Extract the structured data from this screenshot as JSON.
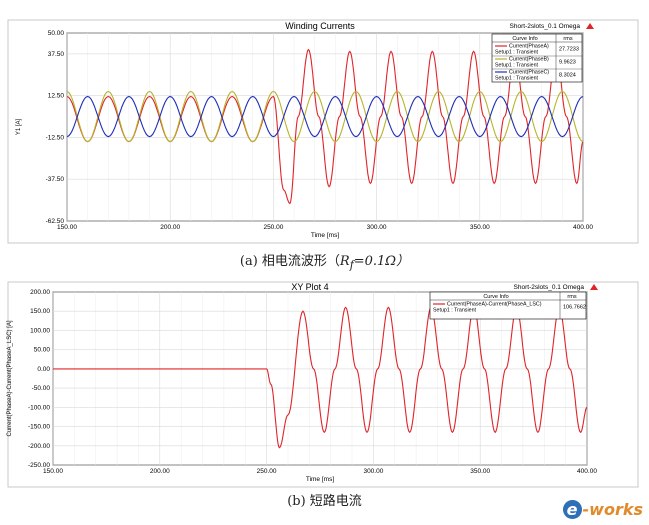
{
  "charts": [
    {
      "title": "Winding Currents",
      "project": "Short-2slots_0.1 Omega",
      "ylabel": "Y1 [A]",
      "xlabel": "Time [ms]",
      "xlim": [
        150,
        400
      ],
      "ylim": [
        -62.5,
        50
      ],
      "xticks": [
        "150.00",
        "200.00",
        "250.00",
        "300.00",
        "350.00",
        "400.00"
      ],
      "yticks": [
        "50.00",
        "37.50",
        "12.50",
        "-12.50",
        "-37.50",
        "-62.50"
      ],
      "legend": {
        "header": "Curve Info",
        "stat_header": "rms",
        "entries": [
          {
            "name": "Current(PhaseA)",
            "sub": "Setup1 : Transient",
            "value": "27.7233",
            "color": "#e0242a"
          },
          {
            "name": "Current(PhaseB)",
            "sub": "Setup1 : Transient",
            "value": "9.9623",
            "color": "#b6b42a"
          },
          {
            "name": "Current(PhaseC)",
            "sub": "Setup1 : Transient",
            "value": "8.3024",
            "color": "#1f2fb8"
          }
        ]
      }
    },
    {
      "title": "XY Plot 4",
      "project": "Short-2slots_0.1 Omega",
      "ylabel": "Current(PhaseA)-Current(PhaseA_LSC) [A]",
      "xlabel": "Time [ms]",
      "xlim": [
        150,
        400
      ],
      "ylim": [
        -250,
        200
      ],
      "xticks": [
        "150.00",
        "200.00",
        "250.00",
        "300.00",
        "350.00",
        "400.00"
      ],
      "yticks": [
        "200.00",
        "150.00",
        "100.00",
        "50.00",
        "0.00",
        "-50.00",
        "-100.00",
        "-150.00",
        "-200.00",
        "-250.00"
      ],
      "legend": {
        "header": "Curve Info",
        "stat_header": "rms",
        "entries": [
          {
            "name": "Current(PhaseA)-Current(PhaseA_LSC)",
            "sub": "Setup1 : Transient",
            "value": "106.7662",
            "color": "#e0242a"
          }
        ]
      }
    }
  ],
  "chart_data": [
    {
      "type": "line",
      "title": "Winding Currents",
      "xlabel": "Time [ms]",
      "ylabel": "Y1 [A]",
      "xlim": [
        150,
        400
      ],
      "ylim": [
        -62.5,
        50
      ],
      "period_ms": 20,
      "series": [
        {
          "name": "Current(PhaseA)",
          "color": "#e0242a",
          "x": [
            150,
            160,
            170,
            180,
            190,
            200,
            210,
            220,
            230,
            240,
            250,
            255,
            258,
            262,
            267,
            272,
            277,
            282,
            287,
            292,
            297,
            302,
            307,
            312,
            317,
            322,
            327,
            332,
            337,
            342,
            347,
            352,
            357,
            362,
            367,
            372,
            377,
            382,
            387,
            392,
            397,
            400
          ],
          "y": [
            12,
            -15,
            12,
            -15,
            12,
            -15,
            12,
            -15,
            12,
            -15,
            12,
            -44,
            -52,
            0,
            40,
            0,
            -42,
            0,
            39,
            0,
            -40,
            0,
            39,
            0,
            -40,
            0,
            39,
            0,
            -40,
            0,
            39,
            0,
            -40,
            0,
            39,
            0,
            -40,
            0,
            39,
            0,
            -40,
            -15
          ]
        },
        {
          "name": "Current(PhaseB)",
          "color": "#b6b42a",
          "x": [
            150,
            160,
            170,
            180,
            190,
            200,
            210,
            220,
            230,
            240,
            250,
            260,
            270,
            280,
            290,
            300,
            310,
            320,
            330,
            340,
            350,
            360,
            370,
            380,
            390,
            400
          ],
          "y": [
            15,
            -15,
            15,
            -15,
            15,
            -15,
            15,
            -15,
            15,
            -15,
            15,
            -15,
            15,
            -15,
            15,
            -15,
            15,
            -15,
            15,
            -15,
            15,
            -15,
            15,
            -15,
            15,
            -15
          ]
        },
        {
          "name": "Current(PhaseC)",
          "color": "#1f2fb8",
          "x": [
            150,
            160,
            170,
            180,
            190,
            200,
            210,
            220,
            230,
            240,
            250,
            260,
            270,
            280,
            290,
            300,
            310,
            320,
            330,
            340,
            350,
            360,
            370,
            380,
            390,
            400
          ],
          "y": [
            -12,
            12,
            -12,
            12,
            -12,
            12,
            -12,
            12,
            -12,
            12,
            -12,
            12,
            -12,
            12,
            -12,
            12,
            -12,
            12,
            -12,
            12,
            -12,
            12,
            -12,
            12,
            -12,
            12
          ]
        }
      ]
    },
    {
      "type": "line",
      "title": "XY Plot 4",
      "xlabel": "Time [ms]",
      "ylabel": "Current(PhaseA)-Current(PhaseA_LSC) [A]",
      "xlim": [
        150,
        400
      ],
      "ylim": [
        -250,
        200
      ],
      "series": [
        {
          "name": "Current(PhaseA)-Current(PhaseA_LSC)",
          "color": "#e0242a",
          "x": [
            150,
            250,
            252,
            256,
            260,
            267,
            272,
            277,
            282,
            287,
            292,
            297,
            302,
            307,
            312,
            317,
            322,
            327,
            332,
            337,
            342,
            347,
            352,
            357,
            362,
            367,
            372,
            377,
            382,
            387,
            392,
            397,
            400
          ],
          "y": [
            0,
            0,
            -40,
            -205,
            -120,
            150,
            0,
            -165,
            0,
            160,
            0,
            -165,
            0,
            160,
            0,
            -165,
            0,
            160,
            0,
            -165,
            0,
            160,
            0,
            -165,
            0,
            160,
            0,
            -165,
            0,
            160,
            0,
            -165,
            -100
          ]
        }
      ]
    }
  ],
  "captions": [
    {
      "lead": "(a)  相电流波形（",
      "var": "R",
      "sub": "f",
      "tail": "=0.1Ω）"
    },
    {
      "lead": "(b)  短路电流",
      "var": "",
      "sub": "",
      "tail": ""
    }
  ],
  "logo": {
    "mark": "e",
    "text": "-works"
  }
}
